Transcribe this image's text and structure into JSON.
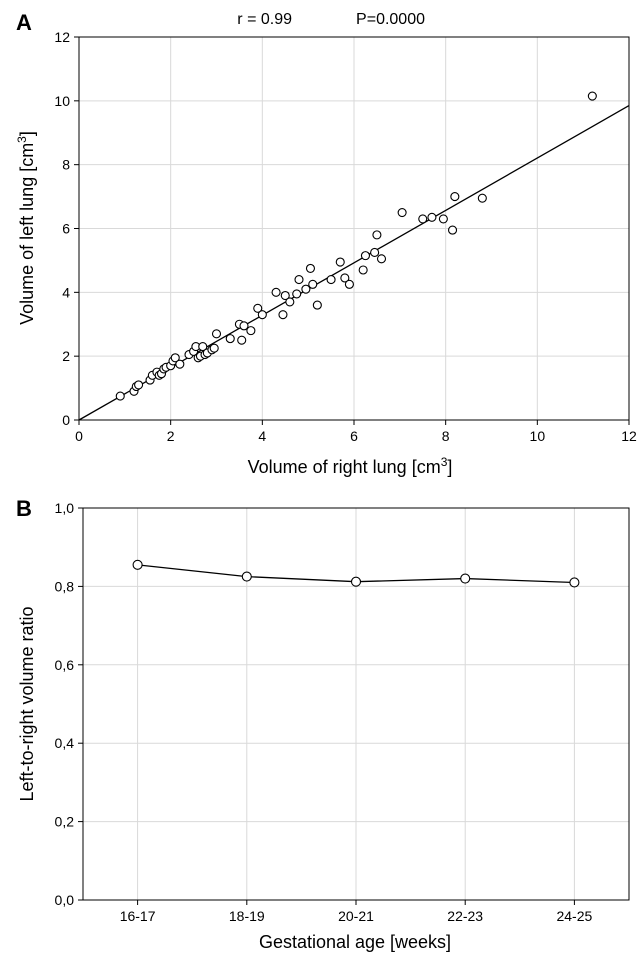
{
  "chart_data": [
    {
      "panel_label": "A",
      "type": "scatter",
      "annotation": {
        "r": "r = 0.99",
        "p": "P=0.0000"
      },
      "xlabel": "Volume of right lung [cm",
      "ylabel": "Volume of left lung [cm",
      "unit_sup": "3",
      "xlim": [
        0,
        12
      ],
      "ylim": [
        0,
        12
      ],
      "xticks": [
        "0",
        "2",
        "4",
        "6",
        "8",
        "10",
        "12"
      ],
      "yticks": [
        "0",
        "2",
        "4",
        "6",
        "8",
        "10",
        "12"
      ],
      "grid": true,
      "fit_line": {
        "x": [
          0,
          12
        ],
        "y": [
          0,
          9.85
        ]
      },
      "points": [
        [
          0.9,
          0.75
        ],
        [
          1.2,
          0.9
        ],
        [
          1.25,
          1.05
        ],
        [
          1.3,
          1.1
        ],
        [
          1.55,
          1.25
        ],
        [
          1.6,
          1.4
        ],
        [
          1.7,
          1.5
        ],
        [
          1.75,
          1.4
        ],
        [
          1.8,
          1.45
        ],
        [
          1.85,
          1.6
        ],
        [
          1.9,
          1.65
        ],
        [
          2.0,
          1.7
        ],
        [
          2.05,
          1.85
        ],
        [
          2.1,
          1.95
        ],
        [
          2.2,
          1.75
        ],
        [
          2.4,
          2.05
        ],
        [
          2.5,
          2.15
        ],
        [
          2.55,
          2.3
        ],
        [
          2.6,
          1.95
        ],
        [
          2.65,
          2.0
        ],
        [
          2.7,
          2.3
        ],
        [
          2.75,
          2.05
        ],
        [
          2.8,
          2.1
        ],
        [
          2.9,
          2.2
        ],
        [
          2.95,
          2.25
        ],
        [
          3.0,
          2.7
        ],
        [
          3.3,
          2.55
        ],
        [
          3.5,
          3.0
        ],
        [
          3.55,
          2.5
        ],
        [
          3.6,
          2.95
        ],
        [
          3.75,
          2.8
        ],
        [
          3.9,
          3.5
        ],
        [
          4.0,
          3.3
        ],
        [
          4.3,
          4.0
        ],
        [
          4.45,
          3.3
        ],
        [
          4.5,
          3.9
        ],
        [
          4.6,
          3.7
        ],
        [
          4.75,
          3.95
        ],
        [
          4.8,
          4.4
        ],
        [
          4.95,
          4.1
        ],
        [
          5.05,
          4.75
        ],
        [
          5.1,
          4.25
        ],
        [
          5.2,
          3.6
        ],
        [
          5.5,
          4.4
        ],
        [
          5.7,
          4.95
        ],
        [
          5.8,
          4.45
        ],
        [
          5.9,
          4.25
        ],
        [
          6.2,
          4.7
        ],
        [
          6.25,
          5.15
        ],
        [
          6.45,
          5.25
        ],
        [
          6.5,
          5.8
        ],
        [
          6.6,
          5.05
        ],
        [
          7.05,
          6.5
        ],
        [
          7.5,
          6.3
        ],
        [
          7.7,
          6.35
        ],
        [
          7.95,
          6.3
        ],
        [
          8.15,
          5.95
        ],
        [
          8.2,
          7.0
        ],
        [
          8.8,
          6.95
        ],
        [
          11.2,
          10.15
        ]
      ]
    },
    {
      "panel_label": "B",
      "type": "line",
      "xlabel": "Gestational age [weeks]",
      "ylabel": "Left-to-right volume ratio",
      "categories": [
        "16-17",
        "18-19",
        "20-21",
        "22-23",
        "24-25"
      ],
      "values": [
        0.855,
        0.825,
        0.812,
        0.82,
        0.81
      ],
      "ylim": [
        0,
        1
      ],
      "yticks": [
        "0,0",
        "0,2",
        "0,4",
        "0,6",
        "0,8",
        "1,0"
      ],
      "ytick_values": [
        0,
        0.2,
        0.4,
        0.6,
        0.8,
        1.0
      ],
      "grid": true
    }
  ]
}
